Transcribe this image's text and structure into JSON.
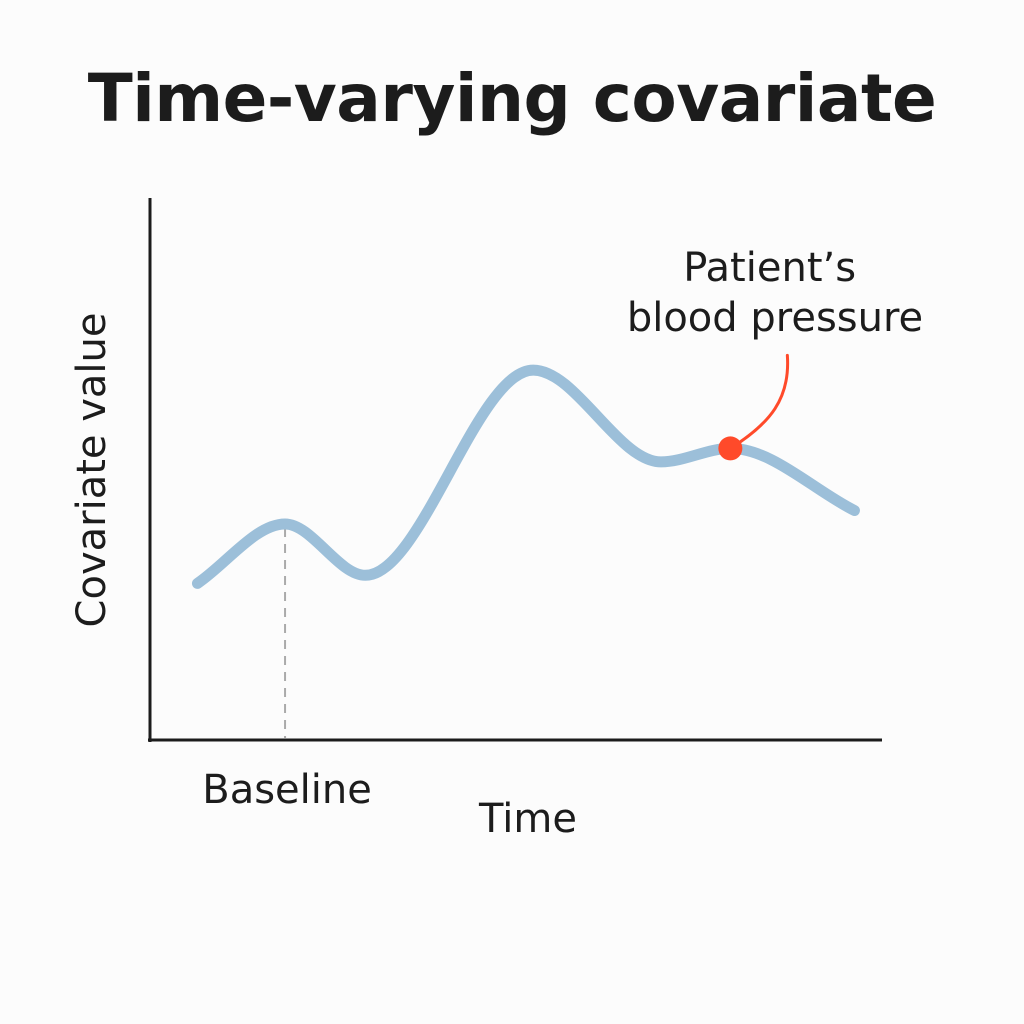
{
  "chart_data": {
    "type": "line",
    "title": "Time-varying covariate",
    "xlabel": "Time",
    "ylabel": "Covariate value",
    "grid": false,
    "legend": "none",
    "xlim": [
      0,
      100
    ],
    "ylim": [
      0,
      100
    ],
    "x_ticks": [
      {
        "x": 18.5,
        "label": "Baseline"
      }
    ],
    "series": [
      {
        "x": [
          6.5,
          18.5,
          29.5,
          52.5,
          70,
          79.5,
          96.5
        ],
        "values": [
          29,
          40,
          30.5,
          68.5,
          51.5,
          54,
          42.5
        ],
        "color": "#9cbfd9"
      }
    ],
    "reference_lines": [
      {
        "orientation": "vertical",
        "x": 18.5,
        "style": "dashed",
        "color": "#aaaaaa"
      }
    ],
    "annotations": [
      {
        "label_lines": [
          "Patient’s",
          "blood pressure"
        ],
        "x": 79.5,
        "y": 54,
        "marker_color": "#ff4a2a",
        "leader_color": "#ff4a2a"
      }
    ],
    "colors": {
      "axis": "#1c1c1c",
      "line": "#9cbfd9",
      "highlight": "#ff4a2a",
      "reference": "#aaaaaa"
    }
  }
}
